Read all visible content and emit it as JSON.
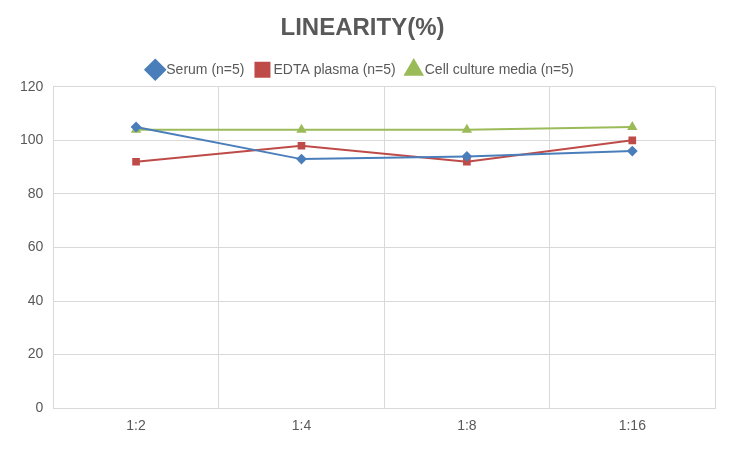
{
  "chart_data": {
    "type": "line",
    "title": "LINEARITY(%)",
    "categories": [
      "1:2",
      "1:4",
      "1:8",
      "1:16"
    ],
    "series": [
      {
        "name": "Serum (n=5)",
        "color": "#4a7ebb",
        "marker": "diamond",
        "values": [
          105,
          93,
          94,
          96
        ]
      },
      {
        "name": "EDTA plasma (n=5)",
        "color": "#be4b48",
        "marker": "square",
        "values": [
          92,
          98,
          92,
          100
        ]
      },
      {
        "name": "Cell culture media (n=5)",
        "color": "#9bbb59",
        "marker": "triangle",
        "values": [
          104,
          104,
          104,
          105
        ]
      }
    ],
    "ylim": [
      0,
      120
    ],
    "yticks": [
      0,
      20,
      40,
      60,
      80,
      100,
      120
    ],
    "grid": true,
    "legend": "top"
  }
}
